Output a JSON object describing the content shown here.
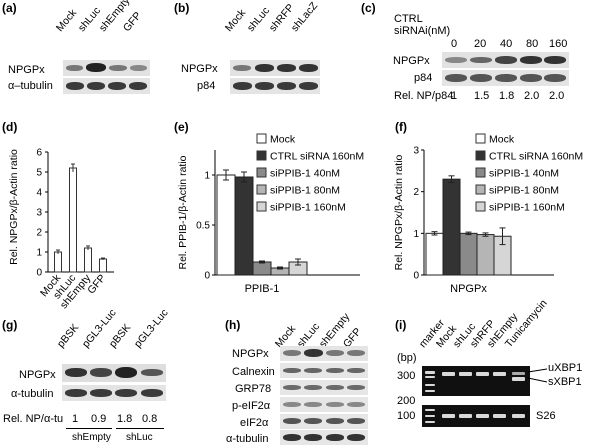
{
  "panel_a": {
    "label": "(a)",
    "lanes": [
      "Mock",
      "shLuc",
      "shEmpty",
      "GFP"
    ],
    "rows": [
      "NPGPx",
      "α–tubulin"
    ]
  },
  "panel_b": {
    "label": "(b)",
    "lanes": [
      "Mock",
      "shLuc",
      "shRFP",
      "shLacZ"
    ],
    "rows": [
      "NPGPx",
      "p84"
    ]
  },
  "panel_c": {
    "label": "(c)",
    "header": "CTRL",
    "header2": "siRNAi(nM)",
    "doses": [
      "0",
      "20",
      "40",
      "80",
      "160"
    ],
    "rows": [
      "NPGPx",
      "p84"
    ],
    "ratio_label": "Rel. NP/p84",
    "ratios": [
      "1",
      "1.5",
      "1.8",
      "2.0",
      "2.0"
    ]
  },
  "panel_d": {
    "label": "(d)"
  },
  "panel_e": {
    "label": "(e)"
  },
  "panel_f": {
    "label": "(f)"
  },
  "panel_g": {
    "label": "(g)",
    "lanes": [
      "pBSK",
      "pGL3-Luc",
      "pBSK",
      "pGL3-Luc"
    ],
    "rows": [
      "NPGPx",
      "α-tubulin"
    ],
    "ratio_label": "Rel. NP/α-tu",
    "ratios": [
      "1",
      "0.9",
      "1.8",
      "0.8"
    ],
    "groups": [
      "shEmpty",
      "shLuc"
    ]
  },
  "panel_h": {
    "label": "(h)",
    "lanes": [
      "Mock",
      "shLuc",
      "shEmpty",
      "GFP"
    ],
    "rows": [
      "NPGPx",
      "Calnexin",
      "GRP78",
      "p-eIF2α",
      "eIF2α",
      "α-tubulin"
    ]
  },
  "panel_i": {
    "label": "(i)",
    "lanes": [
      "marker",
      "Mock",
      "shLuc",
      "shRFP",
      "shEmpty",
      "Tunicamycin"
    ],
    "unit": "(bp)",
    "markers": [
      "300",
      "200",
      "100"
    ],
    "bands": [
      "uXBP1",
      "sXBP1",
      "S26"
    ]
  },
  "legend_mock": "Mock",
  "legend_sirna": [
    "CTRL siRNA 160nM",
    "siPPIB-1 40nM",
    "siPPIB-1 80nM",
    "siPPIB-1 160nM"
  ],
  "colors": {
    "white": "#ffffff",
    "black": "#333333",
    "gray1": "#8a8a8a",
    "gray2": "#b5b5b5",
    "gray3": "#d6d6d6"
  },
  "chart_data": [
    {
      "type": "bar",
      "panel": "(d)",
      "categories": [
        "Mock",
        "shLuc",
        "shEmpty",
        "GFP"
      ],
      "values": [
        1.0,
        5.2,
        1.2,
        0.65
      ],
      "errors": [
        0.1,
        0.2,
        0.1,
        0.05
      ],
      "ylabel": "Rel. NPGPx/β-Actin ratio",
      "ylim": [
        0,
        6
      ],
      "yticks": [
        0,
        1,
        2,
        3,
        4,
        5,
        6
      ]
    },
    {
      "type": "bar",
      "panel": "(e)",
      "group": "PPIB-1",
      "series": [
        {
          "name": "Mock",
          "values": [
            1.0
          ],
          "errors": [
            0.05
          ]
        },
        {
          "name": "CTRL siRNA 160nM",
          "values": [
            0.98
          ],
          "errors": [
            0.05
          ]
        },
        {
          "name": "siPPIB-1 40nM",
          "values": [
            0.13
          ],
          "errors": [
            0.01
          ]
        },
        {
          "name": "siPPIB-1 80nM",
          "values": [
            0.07
          ],
          "errors": [
            0.01
          ]
        },
        {
          "name": "siPPIB-1 160nM",
          "values": [
            0.13
          ],
          "errors": [
            0.03
          ]
        }
      ],
      "ylabel": "Rel. PPIB-1/β-Actin ratio",
      "ylim": [
        0,
        1.25
      ],
      "yticks": [
        0,
        0.5,
        1
      ]
    },
    {
      "type": "bar",
      "panel": "(f)",
      "group": "NPGPx",
      "series": [
        {
          "name": "Mock",
          "values": [
            1.0
          ],
          "errors": [
            0.04
          ]
        },
        {
          "name": "CTRL siRNA 160nM",
          "values": [
            2.3
          ],
          "errors": [
            0.08
          ]
        },
        {
          "name": "siPPIB-1 40nM",
          "values": [
            1.0
          ],
          "errors": [
            0.03
          ]
        },
        {
          "name": "siPPIB-1 80nM",
          "values": [
            0.97
          ],
          "errors": [
            0.04
          ]
        },
        {
          "name": "siPPIB-1 160nM",
          "values": [
            0.93
          ],
          "errors": [
            0.2
          ]
        }
      ],
      "ylabel": "Rel. NPGPx/β-Actin ratio",
      "ylim": [
        0,
        3
      ],
      "yticks": [
        0,
        1,
        2,
        3
      ]
    }
  ]
}
